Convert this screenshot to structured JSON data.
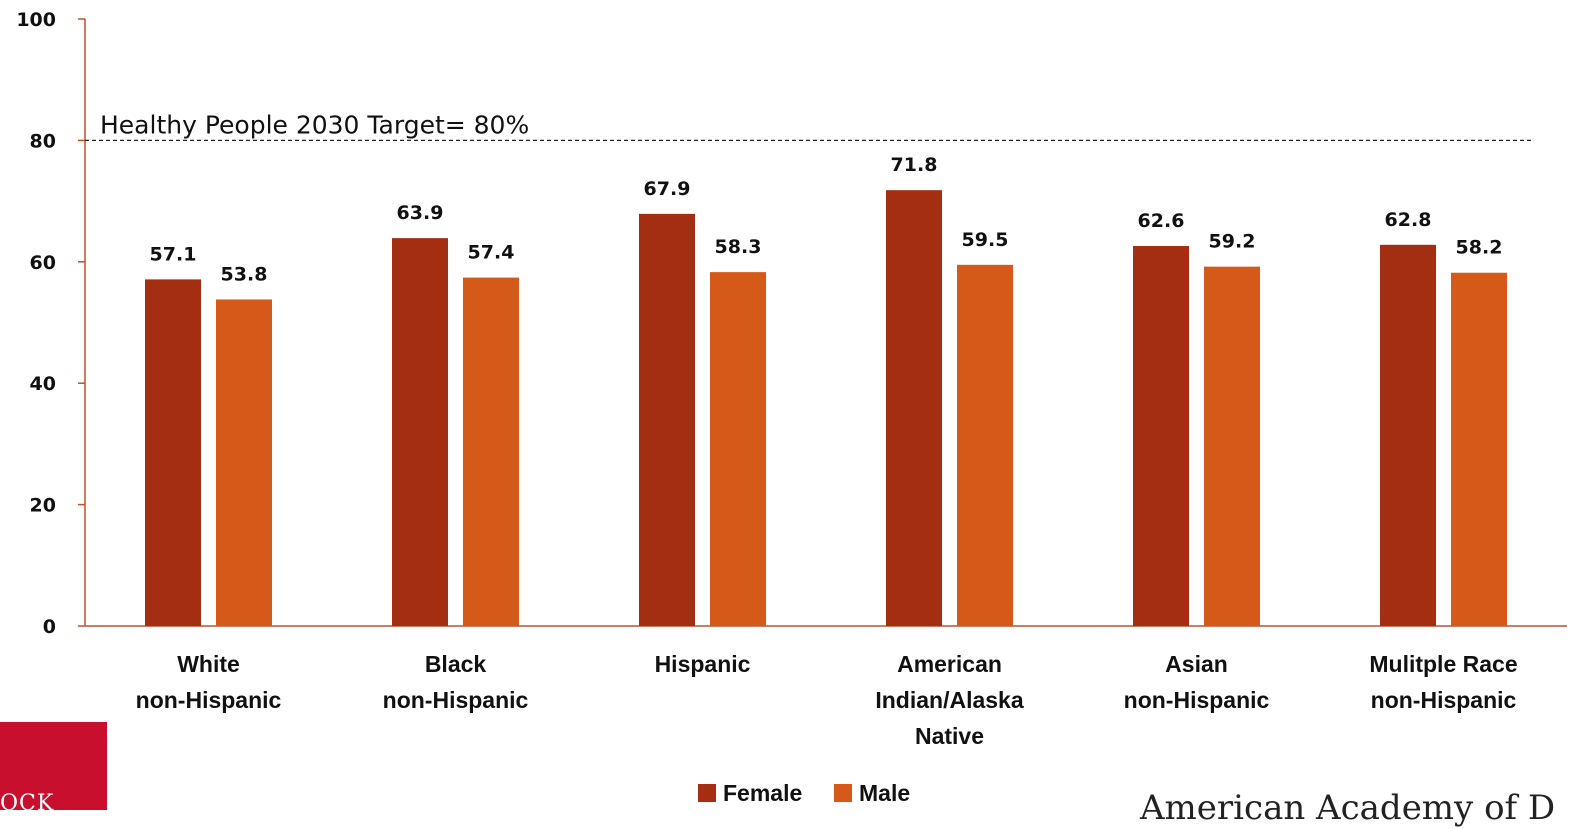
{
  "chart_data": {
    "type": "bar",
    "categories": [
      [
        "White",
        "non-Hispanic"
      ],
      [
        "Black",
        "non-Hispanic"
      ],
      [
        "Hispanic"
      ],
      [
        "American",
        "Indian/Alaska",
        "Native"
      ],
      [
        "Asian",
        "non-Hispanic"
      ],
      [
        "Mulitple Race",
        "non-Hispanic"
      ]
    ],
    "series": [
      {
        "name": "Female",
        "color": "#a32e12",
        "values": [
          57.1,
          63.9,
          67.9,
          71.8,
          62.6,
          62.8
        ]
      },
      {
        "name": "Male",
        "color": "#d55a1a",
        "values": [
          53.8,
          57.4,
          58.3,
          59.5,
          59.2,
          58.2
        ]
      }
    ],
    "value_labels": {
      "Female": [
        "57.1",
        "63.9",
        "67.9",
        "71.8",
        "62.6",
        "62.8"
      ],
      "Male": [
        "53.8",
        "57.4",
        "58.3",
        "59.5",
        "59.2",
        "58.2"
      ]
    },
    "ylim": [
      0,
      100
    ],
    "yticks": [
      "0",
      "20",
      "40",
      "60",
      "80",
      "100"
    ],
    "target": {
      "value": 80,
      "label": "Healthy People 2030 Target= 80%"
    },
    "legend_position": "bottom",
    "grid": false,
    "axis_color": "#c0502a"
  },
  "branding": {
    "logo_text": "OCK",
    "footer_text": "American Academy of D"
  }
}
